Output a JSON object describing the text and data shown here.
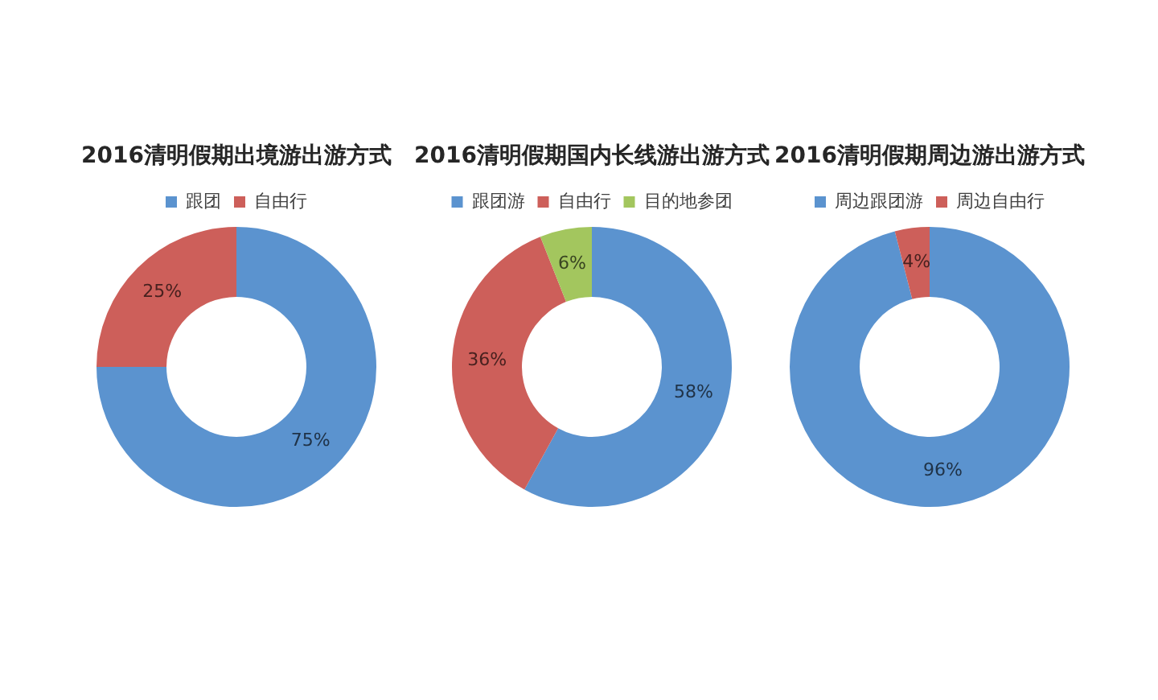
{
  "chart_data": [
    {
      "type": "donut",
      "title": "2016清明假期出境游出游方式",
      "categories": [
        "跟团",
        "自由行"
      ],
      "values": [
        75,
        25
      ],
      "colors": [
        "#5b93cf",
        "#cd5f5a"
      ],
      "value_labels": [
        "75%",
        "25%"
      ],
      "legend": "top"
    },
    {
      "type": "donut",
      "title": "2016清明假期国内长线游出游方式",
      "categories": [
        "跟团游",
        "自由行",
        "目的地参团"
      ],
      "values": [
        58,
        36,
        6
      ],
      "colors": [
        "#5b93cf",
        "#cd5f5a",
        "#a3c65e"
      ],
      "value_labels": [
        "58%",
        "36%",
        "6%"
      ],
      "legend": "top"
    },
    {
      "type": "donut",
      "title": "2016清明假期周边游出游方式",
      "categories": [
        "周边跟团游",
        "周边自由行"
      ],
      "values": [
        96,
        4
      ],
      "colors": [
        "#5b93cf",
        "#cd5f5a"
      ],
      "value_labels": [
        "96%",
        "4%"
      ],
      "legend": "top"
    }
  ]
}
